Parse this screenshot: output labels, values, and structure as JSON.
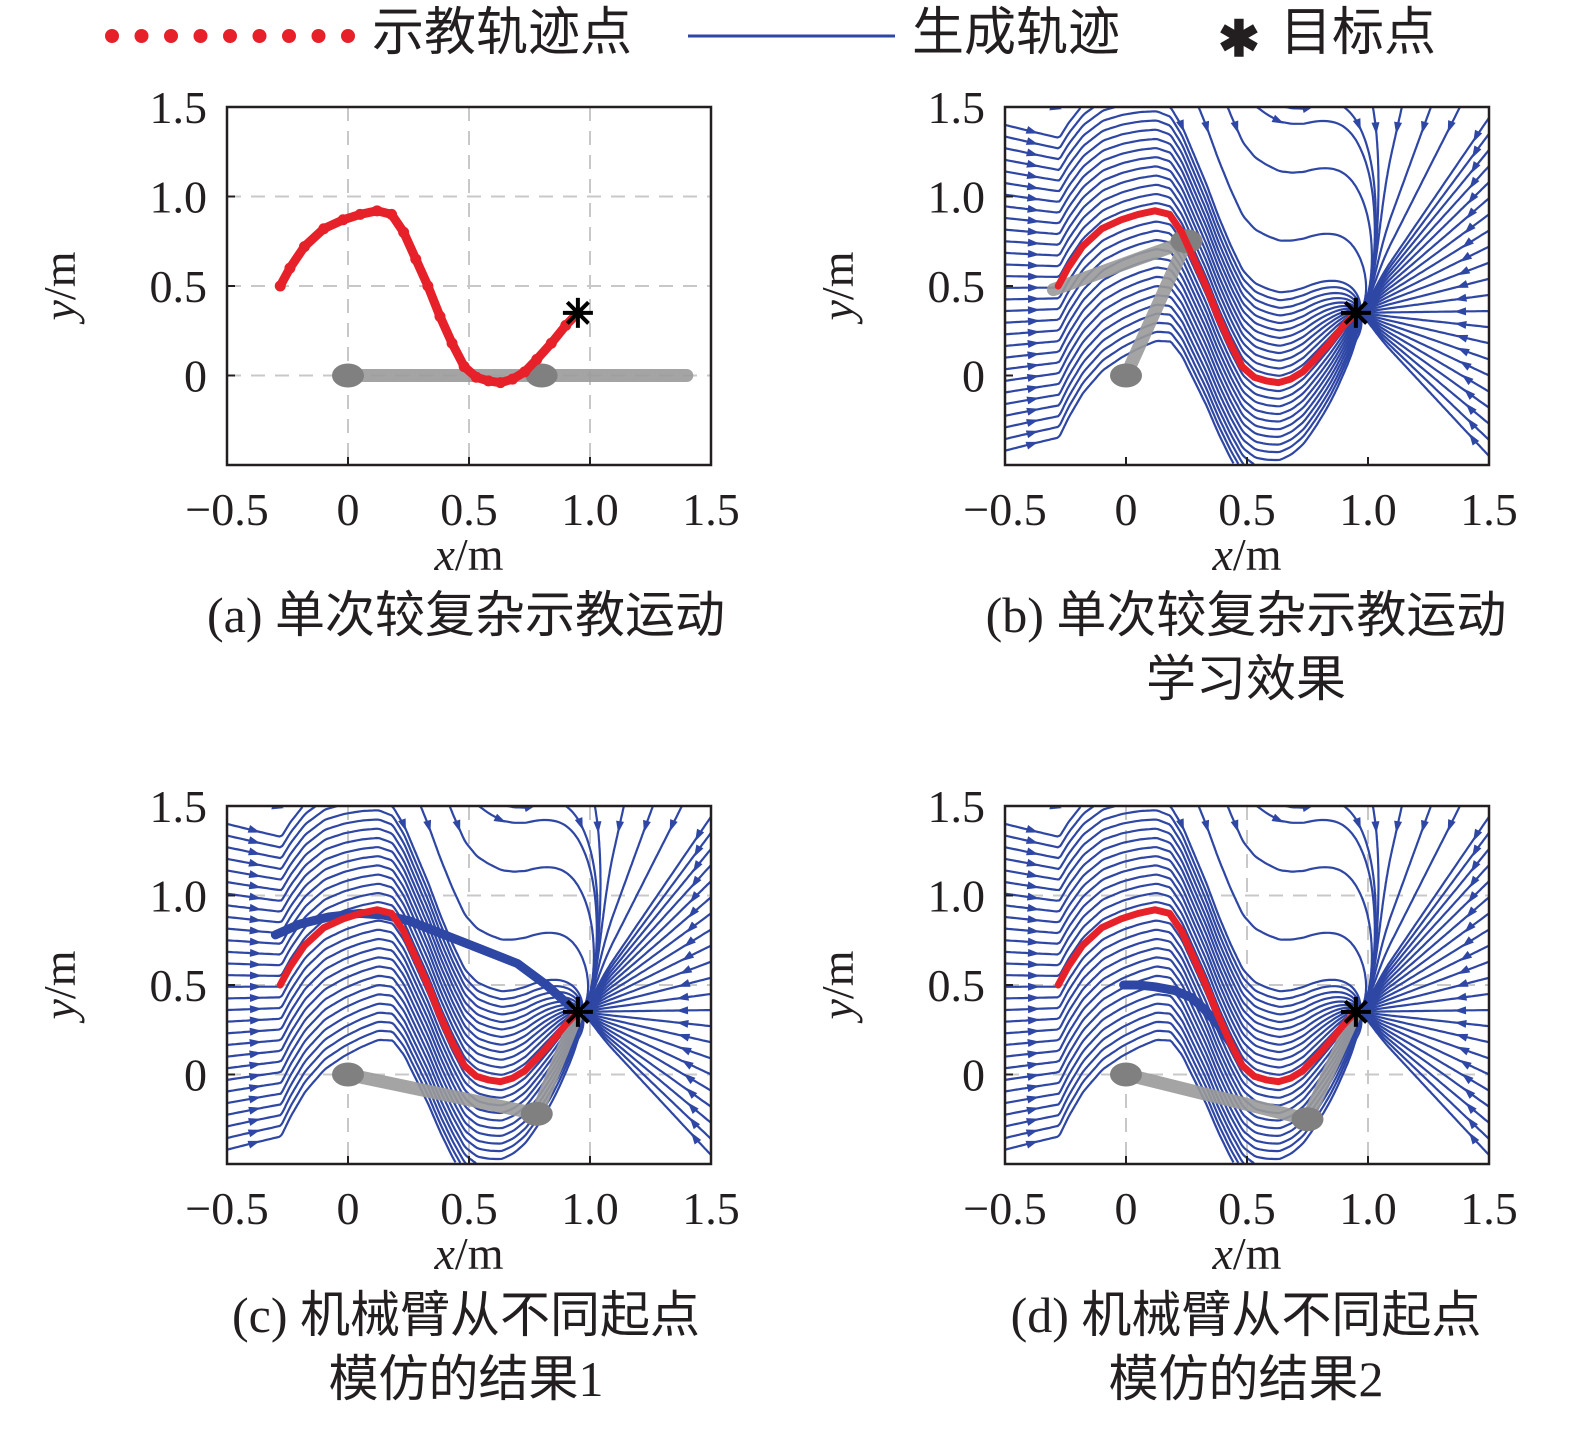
{
  "legend": {
    "demo_points": "示教轨迹点",
    "generated_trajectory": "生成轨迹",
    "target_point": "目标点"
  },
  "colors": {
    "demo": "#e62129",
    "stream": "#2e46a4",
    "arm": "#9a9a9a",
    "arm_joint": "#808080",
    "grid": "#c8c8c8",
    "axis": "#231f20"
  },
  "chart_data": [
    {
      "id": "a",
      "type": "line",
      "caption": [
        "(a) 单次较复杂示教运动"
      ],
      "xlabel_var": "x",
      "ylabel_var": "y",
      "unit": "/m",
      "xlim": [
        -0.5,
        1.5
      ],
      "ylim": [
        -0.5,
        1.5
      ],
      "xticks": [
        -0.5,
        0,
        0.5,
        1.0,
        1.5
      ],
      "xtick_labels": [
        "−0.5",
        "0",
        "0.5",
        "1.0",
        "1.5"
      ],
      "yticks": [
        0,
        0.5,
        1.0,
        1.5
      ],
      "ytick_labels": [
        "0",
        "0.5",
        "1.0",
        "1.5"
      ],
      "grid": true,
      "streamlines": false,
      "demo": {
        "x": [
          -0.28,
          -0.24,
          -0.18,
          -0.1,
          -0.02,
          0.05,
          0.12,
          0.18,
          0.23,
          0.28,
          0.33,
          0.38,
          0.43,
          0.48,
          0.53,
          0.58,
          0.63,
          0.68,
          0.73,
          0.78,
          0.84,
          0.9,
          0.95
        ],
        "y": [
          0.5,
          0.6,
          0.72,
          0.82,
          0.87,
          0.9,
          0.92,
          0.9,
          0.8,
          0.65,
          0.5,
          0.33,
          0.18,
          0.05,
          -0.01,
          -0.03,
          -0.04,
          -0.02,
          0.02,
          0.09,
          0.18,
          0.28,
          0.35
        ]
      },
      "arm": [
        [
          0,
          0
        ],
        [
          0.8,
          0
        ],
        [
          1.4,
          0
        ]
      ],
      "target": [
        0.95,
        0.35
      ]
    },
    {
      "id": "b",
      "type": "line",
      "caption": [
        "(b) 单次较复杂示教运动",
        "学习效果"
      ],
      "xlabel_var": "x",
      "ylabel_var": "y",
      "unit": "/m",
      "xlim": [
        -0.5,
        1.5
      ],
      "ylim": [
        -0.5,
        1.5
      ],
      "xticks": [
        -0.5,
        0,
        0.5,
        1.0,
        1.5
      ],
      "xtick_labels": [
        "−0.5",
        "0",
        "0.5",
        "1.0",
        "1.5"
      ],
      "yticks": [
        0,
        0.5,
        1.0,
        1.5
      ],
      "ytick_labels": [
        "0",
        "0.5",
        "1.0",
        "1.5"
      ],
      "grid": false,
      "streamlines": true,
      "demo": {
        "x": [
          -0.28,
          -0.24,
          -0.18,
          -0.1,
          -0.02,
          0.05,
          0.12,
          0.18,
          0.23,
          0.28,
          0.33,
          0.38,
          0.43,
          0.48,
          0.53,
          0.58,
          0.63,
          0.68,
          0.73,
          0.78,
          0.84,
          0.9,
          0.95
        ],
        "y": [
          0.5,
          0.6,
          0.72,
          0.82,
          0.87,
          0.9,
          0.92,
          0.9,
          0.8,
          0.65,
          0.5,
          0.33,
          0.18,
          0.05,
          -0.01,
          -0.03,
          -0.04,
          -0.02,
          0.02,
          0.09,
          0.18,
          0.28,
          0.35
        ]
      },
      "arm": [
        [
          0,
          0
        ],
        [
          0.25,
          0.75
        ],
        [
          -0.3,
          0.48
        ]
      ],
      "target": [
        0.95,
        0.35
      ]
    },
    {
      "id": "c",
      "type": "line",
      "caption": [
        "(c) 机械臂从不同起点",
        "模仿的结果1"
      ],
      "xlabel_var": "x",
      "ylabel_var": "y",
      "unit": "/m",
      "xlim": [
        -0.5,
        1.5
      ],
      "ylim": [
        -0.5,
        1.5
      ],
      "xticks": [
        -0.5,
        0,
        0.5,
        1.0,
        1.5
      ],
      "xtick_labels": [
        "−0.5",
        "0",
        "0.5",
        "1.0",
        "1.5"
      ],
      "yticks": [
        0,
        0.5,
        1.0,
        1.5
      ],
      "ytick_labels": [
        "0",
        "0.5",
        "1.0",
        "1.5"
      ],
      "grid": true,
      "streamlines": true,
      "demo": {
        "x": [
          -0.28,
          -0.24,
          -0.18,
          -0.1,
          -0.02,
          0.05,
          0.12,
          0.18,
          0.23,
          0.28,
          0.33,
          0.38,
          0.43,
          0.48,
          0.53,
          0.58,
          0.63,
          0.68,
          0.73,
          0.78,
          0.84,
          0.9,
          0.95
        ],
        "y": [
          0.5,
          0.6,
          0.72,
          0.82,
          0.87,
          0.9,
          0.92,
          0.9,
          0.8,
          0.65,
          0.5,
          0.33,
          0.18,
          0.05,
          -0.01,
          -0.03,
          -0.04,
          -0.02,
          0.02,
          0.09,
          0.18,
          0.28,
          0.35
        ]
      },
      "arm": [
        [
          0,
          0
        ],
        [
          0.78,
          -0.22
        ],
        [
          0.95,
          0.35
        ]
      ],
      "target": [
        0.95,
        0.35
      ],
      "thick_stream": {
        "x": [
          -0.3,
          -0.2,
          -0.08,
          0.05,
          0.15,
          0.25,
          0.4,
          0.55,
          0.7,
          0.82,
          0.92
        ],
        "y": [
          0.78,
          0.84,
          0.88,
          0.9,
          0.89,
          0.86,
          0.78,
          0.7,
          0.62,
          0.5,
          0.38
        ]
      }
    },
    {
      "id": "d",
      "type": "line",
      "caption": [
        "(d) 机械臂从不同起点",
        "模仿的结果2"
      ],
      "xlabel_var": "x",
      "ylabel_var": "y",
      "unit": "/m",
      "xlim": [
        -0.5,
        1.5
      ],
      "ylim": [
        -0.5,
        1.5
      ],
      "xticks": [
        -0.5,
        0,
        0.5,
        1.0,
        1.5
      ],
      "xtick_labels": [
        "−0.5",
        "0",
        "0.5",
        "1.0",
        "1.5"
      ],
      "yticks": [
        0,
        0.5,
        1.0,
        1.5
      ],
      "ytick_labels": [
        "0",
        "0.5",
        "1.0",
        "1.5"
      ],
      "grid": true,
      "streamlines": true,
      "demo": {
        "x": [
          -0.28,
          -0.24,
          -0.18,
          -0.1,
          -0.02,
          0.05,
          0.12,
          0.18,
          0.23,
          0.28,
          0.33,
          0.38,
          0.43,
          0.48,
          0.53,
          0.58,
          0.63,
          0.68,
          0.73,
          0.78,
          0.84,
          0.9,
          0.95
        ],
        "y": [
          0.5,
          0.6,
          0.72,
          0.82,
          0.87,
          0.9,
          0.92,
          0.9,
          0.8,
          0.65,
          0.5,
          0.33,
          0.18,
          0.05,
          -0.01,
          -0.03,
          -0.04,
          -0.02,
          0.02,
          0.09,
          0.18,
          0.28,
          0.35
        ]
      },
      "arm": [
        [
          0,
          0
        ],
        [
          0.75,
          -0.25
        ],
        [
          0.95,
          0.35
        ]
      ],
      "target": [
        0.95,
        0.35
      ],
      "thick_stream": {
        "x": [
          -0.01,
          0.05,
          0.12,
          0.2,
          0.27,
          0.32,
          0.38,
          0.43
        ],
        "y": [
          0.5,
          0.5,
          0.49,
          0.47,
          0.43,
          0.37,
          0.28,
          0.18
        ]
      }
    }
  ]
}
